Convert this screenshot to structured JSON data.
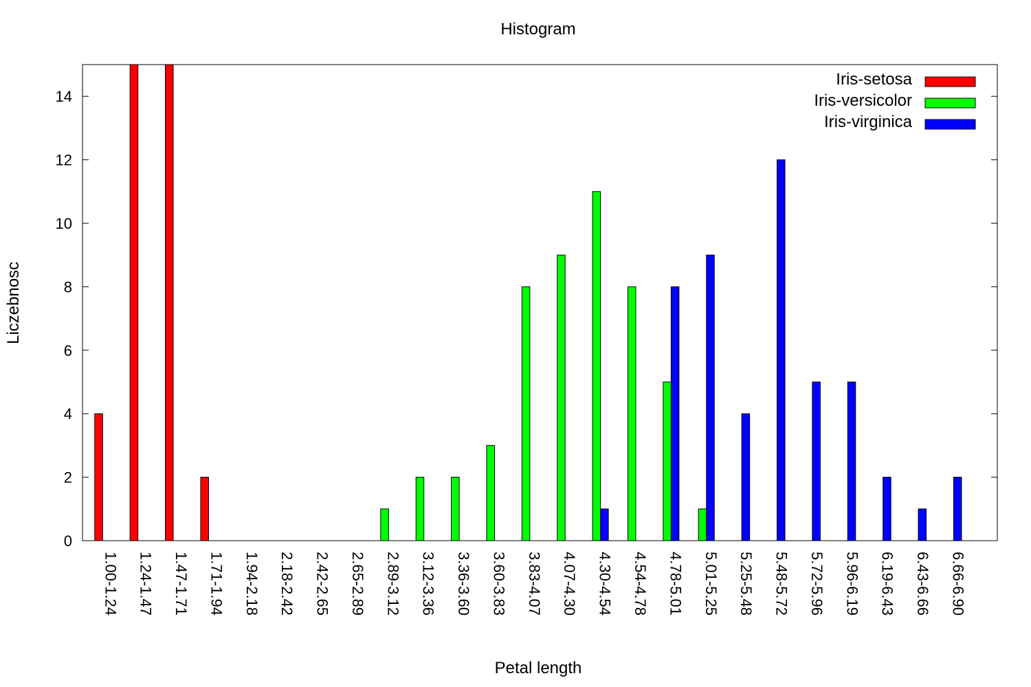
{
  "chart_data": {
    "type": "bar",
    "title": "Histogram",
    "xlabel": "Petal length",
    "ylabel": "Liczebnosc",
    "ylim": [
      0,
      15
    ],
    "yticks": [
      0,
      2,
      4,
      6,
      8,
      10,
      12,
      14
    ],
    "grid": false,
    "legend_position": "top-right",
    "categories": [
      "1.00-1.24",
      "1.24-1.47",
      "1.47-1.71",
      "1.71-1.94",
      "1.94-2.18",
      "2.18-2.42",
      "2.42-2.65",
      "2.65-2.89",
      "2.89-3.12",
      "3.12-3.36",
      "3.36-3.60",
      "3.60-3.83",
      "3.83-4.07",
      "4.07-4.30",
      "4.30-4.54",
      "4.54-4.78",
      "4.78-5.01",
      "5.01-5.25",
      "5.25-5.48",
      "5.48-5.72",
      "5.72-5.96",
      "5.96-6.19",
      "6.19-6.43",
      "6.43-6.66",
      "6.66-6.90"
    ],
    "series": [
      {
        "name": "Iris-setosa",
        "color": "#ff0000",
        "values": [
          4,
          15,
          15,
          2,
          0,
          0,
          0,
          0,
          0,
          0,
          0,
          0,
          0,
          0,
          0,
          0,
          0,
          0,
          0,
          0,
          0,
          0,
          0,
          0,
          0
        ]
      },
      {
        "name": "Iris-versicolor",
        "color": "#00ff00",
        "values": [
          0,
          0,
          0,
          0,
          0,
          0,
          0,
          0,
          1,
          2,
          2,
          3,
          8,
          9,
          11,
          8,
          5,
          1,
          0,
          0,
          0,
          0,
          0,
          0,
          0
        ]
      },
      {
        "name": "Iris-virginica",
        "color": "#0000ff",
        "values": [
          0,
          0,
          0,
          0,
          0,
          0,
          0,
          0,
          0,
          0,
          0,
          0,
          0,
          0,
          1,
          0,
          8,
          9,
          4,
          12,
          5,
          5,
          2,
          1,
          2
        ]
      }
    ]
  }
}
